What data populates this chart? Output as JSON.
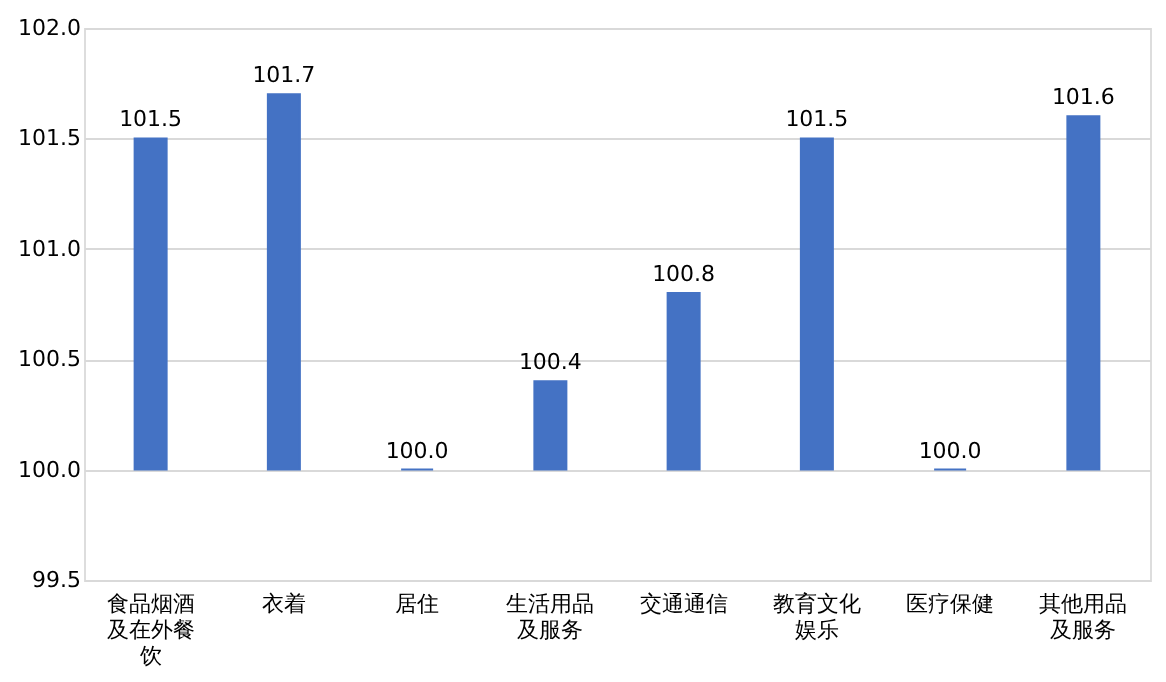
{
  "chart_data": {
    "type": "bar",
    "categories": [
      "食品烟酒及在外餐饮",
      "衣着",
      "居住",
      "生活用品及服务",
      "交通通信",
      "教育文化娱乐",
      "医疗保健",
      "其他用品及服务"
    ],
    "base": [
      100,
      100,
      100,
      100,
      100,
      100,
      100,
      100
    ],
    "values": [
      1.5,
      1.7,
      0.0,
      0.4,
      0.8,
      1.5,
      0.0,
      1.6
    ],
    "value_labels": [
      "101.5",
      "101.7",
      "100.0",
      "100.4",
      "100.8",
      "101.5",
      "100.0",
      "101.6"
    ],
    "color": "#4472c4",
    "ylim": [
      99.5,
      102.0
    ],
    "yticks": [
      {
        "value": 99.5,
        "label": "99.5"
      },
      {
        "value": 100.0,
        "label": "100.0"
      },
      {
        "value": 100.5,
        "label": "100.5"
      },
      {
        "value": 101.0,
        "label": "101.0"
      },
      {
        "value": 101.5,
        "label": "101.5"
      },
      {
        "value": 102.0,
        "label": "102.0"
      }
    ],
    "grid": "y"
  }
}
